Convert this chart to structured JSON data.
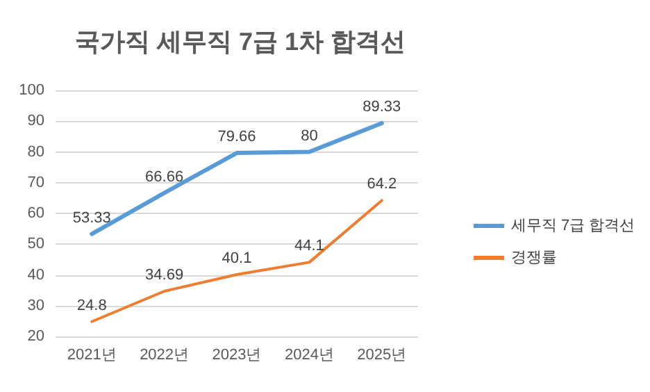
{
  "chart_data": {
    "type": "line",
    "title": "국가직 세무직 7급 1차 합격선",
    "categories": [
      "2021년",
      "2022년",
      "2023년",
      "2024년",
      "2025년"
    ],
    "series": [
      {
        "name": "세무직 7급 합격선",
        "color": "#5b9bd5",
        "values": [
          53.33,
          66.66,
          79.66,
          80,
          89.33
        ]
      },
      {
        "name": "경쟁률",
        "color": "#ed7d31",
        "values": [
          24.8,
          34.69,
          40.1,
          44.1,
          64.2
        ]
      }
    ],
    "ylim": [
      20,
      100
    ],
    "yticks": [
      20,
      30,
      40,
      50,
      60,
      70,
      80,
      90,
      100
    ],
    "grid": "y",
    "legend": "right",
    "data_labels": true,
    "marker": "none",
    "line_style": "solid"
  }
}
